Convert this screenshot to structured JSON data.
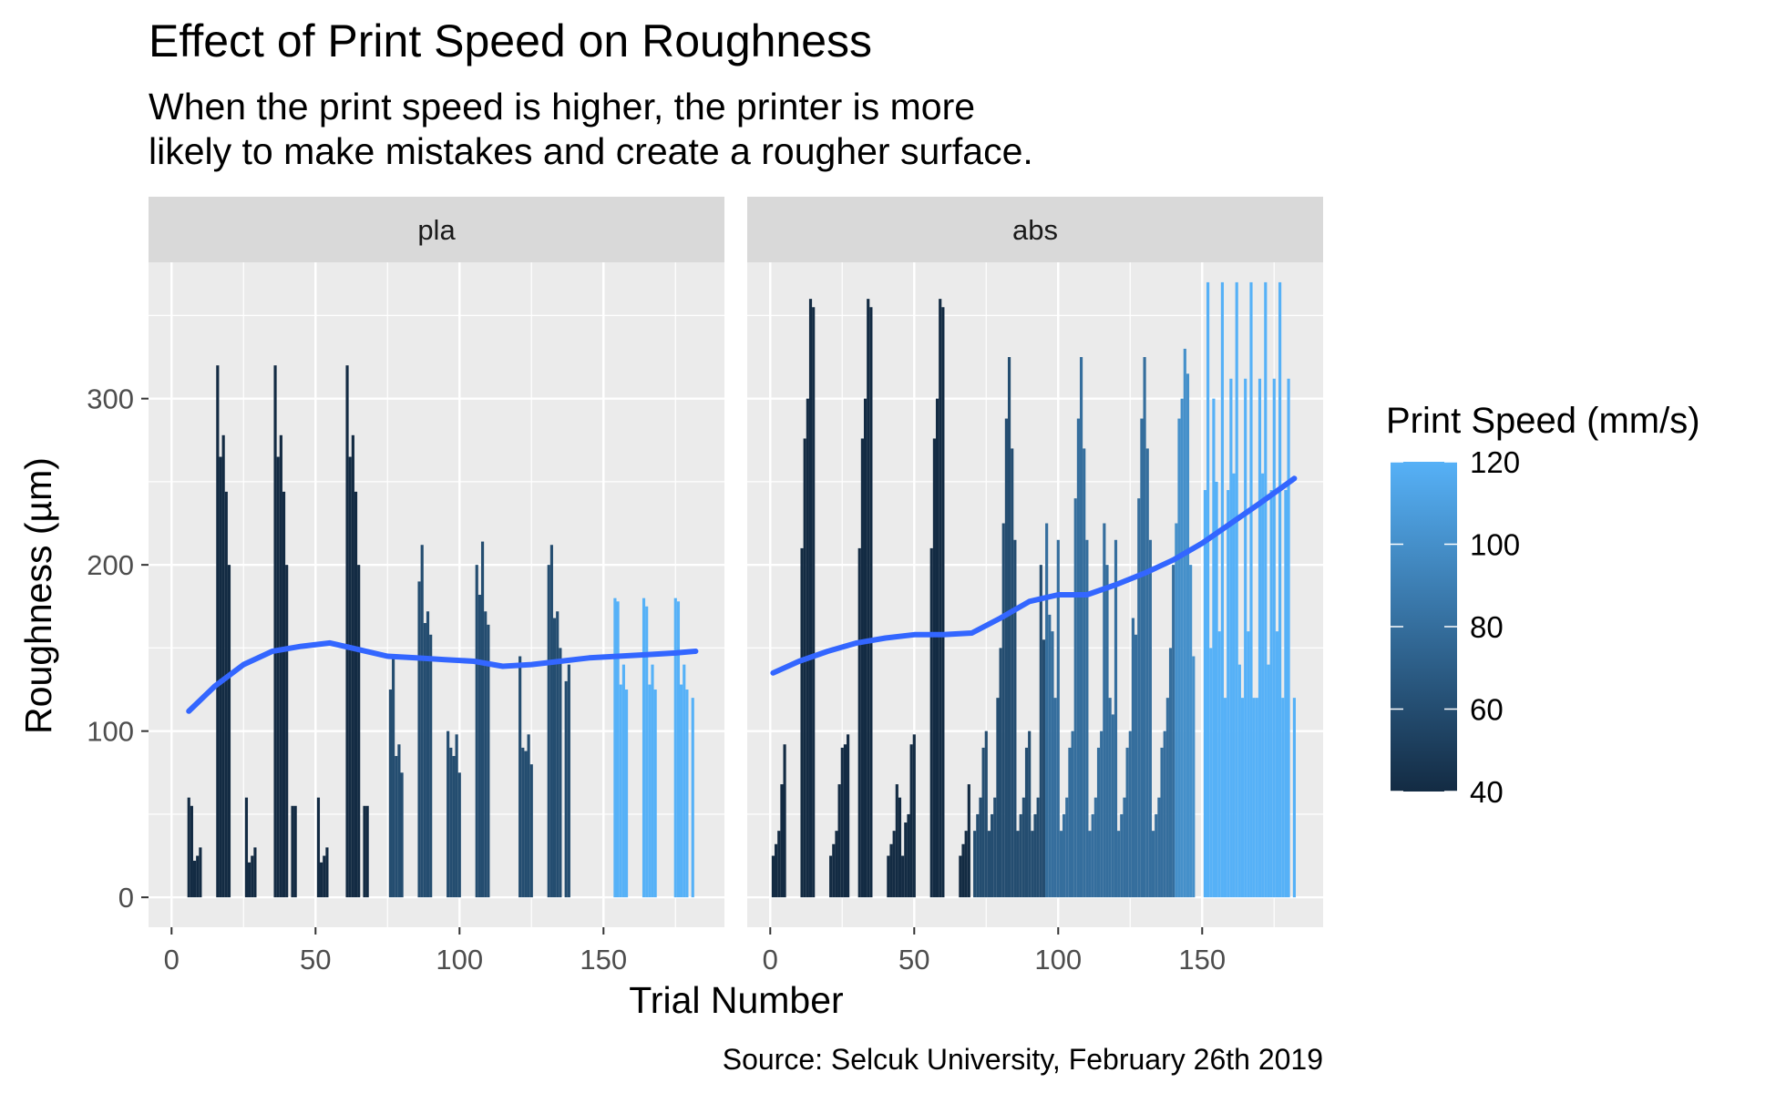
{
  "chart_data": {
    "type": "bar",
    "title": "Effect of Print Speed on Roughness",
    "subtitle_lines": [
      "When the print speed is higher, the printer is more",
      "likely to make mistakes and create a rougher surface."
    ],
    "xlabel": "Trial Number",
    "ylabel": "Roughness (µm)",
    "caption": "Source: Selcuk University, February 26th 2019",
    "xlim": [
      -8,
      192
    ],
    "ylim": [
      -18,
      382
    ],
    "x_ticks": [
      0,
      50,
      100,
      150
    ],
    "x_tick_labels": [
      "0",
      "50",
      "100",
      "150"
    ],
    "y_ticks": [
      0,
      100,
      200,
      300
    ],
    "y_tick_labels": [
      "0",
      "100",
      "200",
      "300"
    ],
    "grid": true,
    "color_scale": {
      "title": "Print Speed (mm/s)",
      "domain": [
        40,
        120
      ],
      "low": "#132B43",
      "high": "#56B1F7",
      "ticks": [
        40,
        60,
        80,
        100,
        120
      ],
      "tick_labels": [
        "40",
        "60",
        "80",
        "100",
        "120"
      ],
      "legend_position": "right"
    },
    "smooth_color": "#3366FF",
    "panels": [
      {
        "label": "pla",
        "groups": [
          {
            "start": 6,
            "speed": 40,
            "values": [
              60,
              55,
              22,
              25,
              30
            ]
          },
          {
            "start": 16,
            "speed": 40,
            "values": [
              320,
              265,
              278,
              244,
              200
            ]
          },
          {
            "start": 26,
            "speed": 40,
            "values": [
              60,
              21,
              25,
              30,
              0
            ]
          },
          {
            "start": 36,
            "speed": 40,
            "values": [
              320,
              265,
              278,
              244,
              200
            ]
          },
          {
            "start": 42,
            "speed": 40,
            "values": [
              55,
              55
            ]
          },
          {
            "start": 51,
            "speed": 40,
            "values": [
              60,
              21,
              25,
              30
            ]
          },
          {
            "start": 61,
            "speed": 40,
            "values": [
              320,
              265,
              278,
              244,
              200
            ]
          },
          {
            "start": 67,
            "speed": 40,
            "values": [
              55,
              55
            ]
          },
          {
            "start": 76,
            "speed": 60,
            "values": [
              125,
              145,
              85,
              92,
              75
            ]
          },
          {
            "start": 86,
            "speed": 60,
            "values": [
              190,
              212,
              165,
              172,
              158
            ]
          },
          {
            "start": 96,
            "speed": 60,
            "values": [
              100,
              90,
              85,
              98,
              75
            ]
          },
          {
            "start": 106,
            "speed": 60,
            "values": [
              200,
              182,
              214,
              172,
              164
            ]
          },
          {
            "start": 121,
            "speed": 60,
            "values": [
              145,
              90,
              88,
              98,
              80
            ]
          },
          {
            "start": 131,
            "speed": 60,
            "values": [
              200,
              212,
              168,
              172,
              150
            ]
          },
          {
            "start": 137,
            "speed": 60,
            "values": [
              130,
              140
            ]
          },
          {
            "start": 154,
            "speed": 120,
            "values": [
              180,
              178,
              128,
              140,
              125
            ]
          },
          {
            "start": 164,
            "speed": 120,
            "values": [
              180,
              175,
              128,
              140,
              125
            ]
          },
          {
            "start": 175,
            "speed": 120,
            "values": [
              180,
              178,
              128,
              140,
              125
            ]
          },
          {
            "start": 181,
            "speed": 120,
            "values": [
              120
            ]
          }
        ],
        "smooth": {
          "x": [
            6,
            15,
            25,
            35,
            45,
            55,
            65,
            75,
            85,
            95,
            105,
            115,
            125,
            135,
            145,
            155,
            165,
            175,
            182
          ],
          "y": [
            112,
            127,
            140,
            148,
            151,
            153,
            149,
            145,
            144,
            143,
            142,
            139,
            140,
            142,
            144,
            145,
            146,
            147,
            148
          ]
        }
      },
      {
        "label": "abs",
        "groups": [
          {
            "start": 1,
            "speed": 40,
            "values": [
              25,
              32,
              40,
              68,
              92
            ]
          },
          {
            "start": 11,
            "speed": 40,
            "values": [
              210,
              276,
              300,
              360,
              355
            ]
          },
          {
            "start": 21,
            "speed": 40,
            "values": [
              25,
              32,
              40,
              68,
              90
            ]
          },
          {
            "start": 26,
            "speed": 40,
            "values": [
              92,
              98
            ]
          },
          {
            "start": 31,
            "speed": 40,
            "values": [
              210,
              276,
              300,
              360,
              355
            ]
          },
          {
            "start": 41,
            "speed": 40,
            "values": [
              25,
              32,
              40,
              68,
              60
            ]
          },
          {
            "start": 46,
            "speed": 40,
            "values": [
              25,
              45,
              50,
              92,
              98
            ]
          },
          {
            "start": 56,
            "speed": 40,
            "values": [
              210,
              276,
              300,
              360,
              355
            ]
          },
          {
            "start": 66,
            "speed": 40,
            "values": [
              25,
              32,
              40,
              68
            ]
          },
          {
            "start": 71,
            "speed": 60,
            "values": [
              40,
              50,
              60,
              90,
              100
            ]
          },
          {
            "start": 76,
            "speed": 60,
            "values": [
              40,
              50,
              60,
              120,
              150
            ]
          },
          {
            "start": 81,
            "speed": 60,
            "values": [
              225,
              288,
              325,
              270,
              215
            ]
          },
          {
            "start": 86,
            "speed": 60,
            "values": [
              40,
              50,
              60,
              90,
              100
            ]
          },
          {
            "start": 91,
            "speed": 60,
            "values": [
              40,
              50,
              60,
              200,
              155
            ]
          },
          {
            "start": 96,
            "speed": 80,
            "values": [
              225,
              170,
              160,
              120,
              215
            ]
          },
          {
            "start": 101,
            "speed": 80,
            "values": [
              40,
              50,
              60,
              90,
              100
            ]
          },
          {
            "start": 106,
            "speed": 80,
            "values": [
              240,
              288,
              325,
              270,
              215
            ]
          },
          {
            "start": 111,
            "speed": 80,
            "values": [
              40,
              50,
              60,
              90,
              100
            ]
          },
          {
            "start": 116,
            "speed": 80,
            "values": [
              225,
              200,
              120,
              110,
              215
            ]
          },
          {
            "start": 121,
            "speed": 80,
            "values": [
              40,
              50,
              60,
              90,
              100
            ]
          },
          {
            "start": 126,
            "speed": 80,
            "values": [
              168,
              158,
              240,
              288,
              325
            ]
          },
          {
            "start": 131,
            "speed": 80,
            "values": [
              270,
              215,
              40,
              50,
              60
            ]
          },
          {
            "start": 136,
            "speed": 80,
            "values": [
              90,
              100,
              120,
              150,
              200
            ]
          },
          {
            "start": 141,
            "speed": 100,
            "values": [
              225,
              288,
              300,
              330,
              315
            ]
          },
          {
            "start": 146,
            "speed": 100,
            "values": [
              200,
              145
            ]
          },
          {
            "start": 151,
            "speed": 120,
            "values": [
              245,
              370,
              150,
              300,
              250
            ]
          },
          {
            "start": 156,
            "speed": 120,
            "values": [
              160,
              370,
              120,
              245,
              312
            ]
          },
          {
            "start": 161,
            "speed": 120,
            "values": [
              255,
              370,
              140,
              120,
              312
            ]
          },
          {
            "start": 166,
            "speed": 120,
            "values": [
              160,
              370,
              120,
              120,
              312
            ]
          },
          {
            "start": 171,
            "speed": 120,
            "values": [
              255,
              370,
              140,
              245,
              312
            ]
          },
          {
            "start": 176,
            "speed": 120,
            "values": [
              160,
              370,
              120,
              245,
              312
            ]
          },
          {
            "start": 182,
            "speed": 120,
            "values": [
              120
            ]
          }
        ],
        "smooth": {
          "x": [
            1,
            10,
            20,
            30,
            40,
            50,
            60,
            70,
            80,
            90,
            100,
            110,
            120,
            130,
            140,
            150,
            160,
            170,
            182
          ],
          "y": [
            135,
            142,
            148,
            153,
            156,
            158,
            158,
            159,
            168,
            178,
            182,
            182,
            188,
            195,
            203,
            213,
            225,
            237,
            252
          ]
        }
      }
    ]
  }
}
